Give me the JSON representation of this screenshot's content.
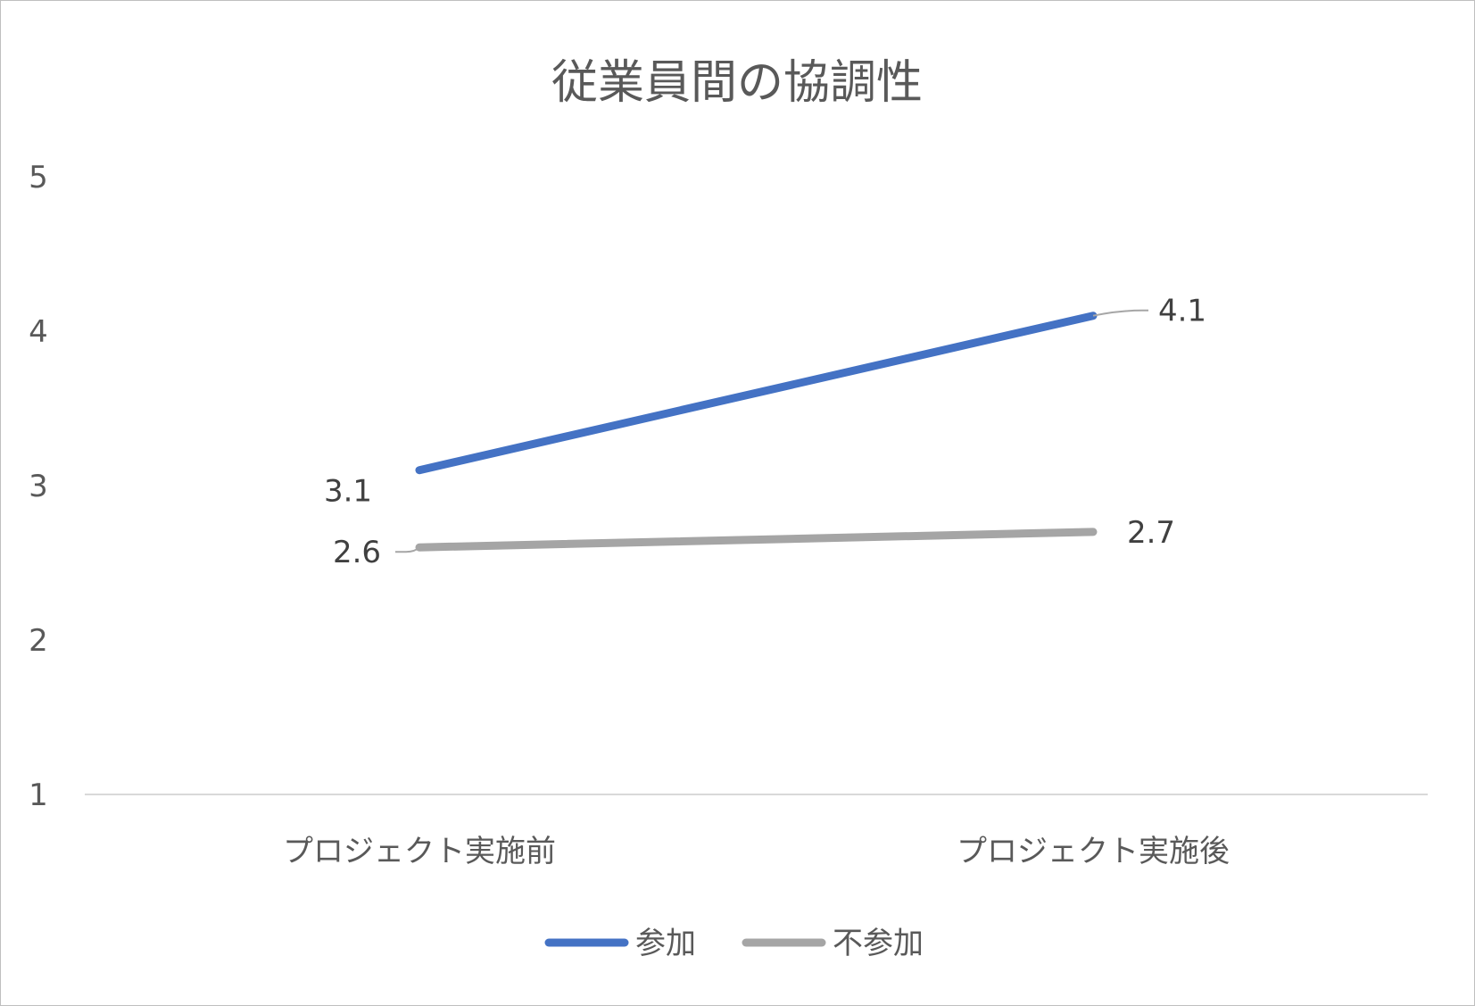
{
  "chart_data": {
    "type": "line",
    "title": "従業員間の協調性",
    "xlabel": "",
    "ylabel": "",
    "categories": [
      "プロジェクト実施前",
      "プロジェクト実施後"
    ],
    "ylim": [
      1,
      5
    ],
    "yticks": [
      "1",
      "2",
      "3",
      "4",
      "5"
    ],
    "grid": false,
    "legend_position": "bottom",
    "series": [
      {
        "name": "参加",
        "values": [
          3.1,
          4.1
        ],
        "labels": [
          "3.1",
          "4.1"
        ],
        "color": "#4472c4"
      },
      {
        "name": "不参加",
        "values": [
          2.6,
          2.7
        ],
        "labels": [
          "2.6",
          "2.7"
        ],
        "color": "#a5a5a5"
      }
    ]
  }
}
